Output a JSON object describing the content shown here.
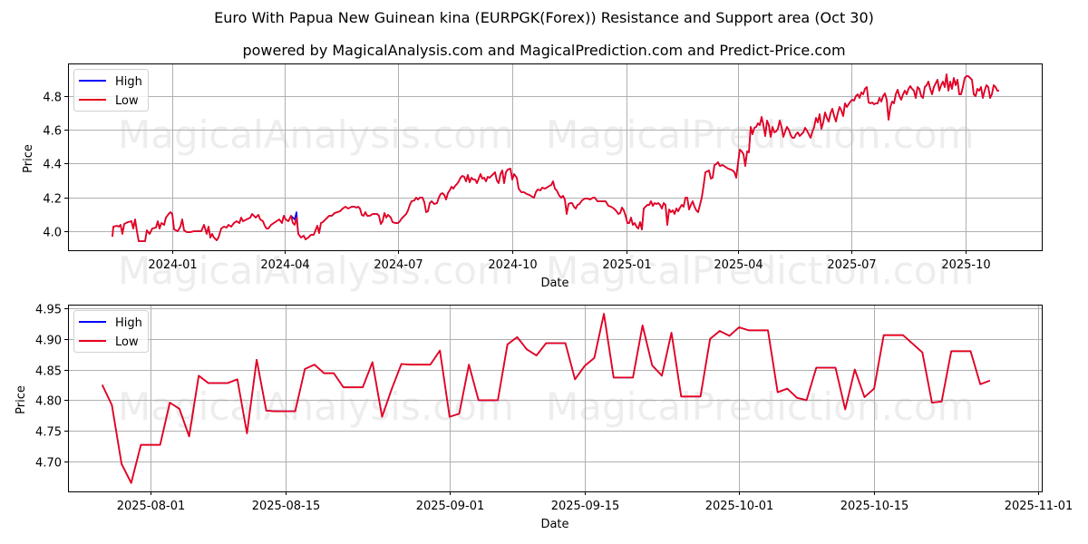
{
  "header": {
    "title": "Euro With Papua New Guinean kina (EURPGK(Forex)) Resistance and Support area (Oct 30)",
    "subtitle": "powered by MagicalAnalysis.com and MagicalPrediction.com and Predict-Price.com"
  },
  "watermarks": [
    "MagicalAnalysis.com",
    "MagicalPrediction.com"
  ],
  "colors": {
    "high": "#0000ff",
    "low": "#e8001c",
    "grid": "#b0b0b0"
  },
  "legend": {
    "high": "High",
    "low": "Low"
  },
  "chart_data": [
    {
      "type": "line",
      "title": "Long-term",
      "xlabel": "Date",
      "ylabel": "Price",
      "ylim": [
        3.89,
        4.99
      ],
      "yticks": [
        "4.0",
        "4.2",
        "4.4",
        "4.6",
        "4.8"
      ],
      "xticks": [
        "2024-01",
        "2024-04",
        "2024-07",
        "2024-10",
        "2025-01",
        "2025-04",
        "2025-07",
        "2025-10"
      ],
      "grid": true,
      "legend_position": "upper left",
      "x": [
        "2023-11",
        "2023-12",
        "2024-01",
        "2024-02",
        "2024-03",
        "2024-04",
        "2024-05",
        "2024-06",
        "2024-07",
        "2024-08",
        "2024-09",
        "2024-10",
        "2024-11",
        "2024-12",
        "2025-01",
        "2025-02",
        "2025-03",
        "2025-04",
        "2025-05",
        "2025-06",
        "2025-07",
        "2025-08",
        "2025-09",
        "2025-10",
        "2025-10-30"
      ],
      "series": [
        {
          "name": "High",
          "values": [
            3.98,
            4.03,
            4.01,
            4.0,
            4.06,
            4.09,
            3.97,
            4.12,
            4.06,
            4.18,
            4.3,
            4.36,
            4.25,
            4.18,
            4.1,
            4.12,
            4.14,
            4.4,
            4.6,
            4.62,
            4.8,
            4.78,
            4.85,
            4.91,
            4.83
          ]
        },
        {
          "name": "Low",
          "values": [
            3.97,
            4.02,
            4.0,
            3.99,
            4.05,
            4.07,
            3.96,
            4.11,
            4.05,
            4.17,
            4.29,
            4.35,
            4.24,
            4.17,
            4.09,
            4.11,
            4.13,
            4.39,
            4.59,
            4.61,
            4.79,
            4.77,
            4.84,
            4.9,
            4.83
          ]
        }
      ]
    },
    {
      "type": "line",
      "title": "Last 3 months",
      "xlabel": "Date",
      "ylabel": "Price",
      "ylim": [
        4.65,
        4.95
      ],
      "yticks": [
        "4.70",
        "4.75",
        "4.80",
        "4.85",
        "4.90",
        "4.95"
      ],
      "xticks": [
        "2025-08-01",
        "2025-08-15",
        "2025-09-01",
        "2025-09-15",
        "2025-10-01",
        "2025-10-15",
        "2025-11-01"
      ],
      "grid": true,
      "legend_position": "upper left",
      "x": [
        "2025-07-27",
        "2025-07-28",
        "2025-07-29",
        "2025-07-30",
        "2025-07-31",
        "2025-08-02",
        "2025-08-03",
        "2025-08-04",
        "2025-08-05",
        "2025-08-06",
        "2025-08-07",
        "2025-08-09",
        "2025-08-10",
        "2025-08-11",
        "2025-08-12",
        "2025-08-13",
        "2025-08-14",
        "2025-08-16",
        "2025-08-17",
        "2025-08-18",
        "2025-08-19",
        "2025-08-20",
        "2025-08-21",
        "2025-08-23",
        "2025-08-24",
        "2025-08-25",
        "2025-08-26",
        "2025-08-27",
        "2025-08-28",
        "2025-08-30",
        "2025-08-31",
        "2025-09-01",
        "2025-09-02",
        "2025-09-03",
        "2025-09-04",
        "2025-09-06",
        "2025-09-07",
        "2025-09-08",
        "2025-09-09",
        "2025-09-10",
        "2025-09-11",
        "2025-09-13",
        "2025-09-14",
        "2025-09-15",
        "2025-09-16",
        "2025-09-17",
        "2025-09-18",
        "2025-09-20",
        "2025-09-21",
        "2025-09-22",
        "2025-09-23",
        "2025-09-24",
        "2025-09-25",
        "2025-09-27",
        "2025-09-28",
        "2025-09-29",
        "2025-09-30",
        "2025-10-01",
        "2025-10-02",
        "2025-10-04",
        "2025-10-05",
        "2025-10-06",
        "2025-10-07",
        "2025-10-08",
        "2025-10-09",
        "2025-10-11",
        "2025-10-12",
        "2025-10-13",
        "2025-10-14",
        "2025-10-15",
        "2025-10-16",
        "2025-10-18",
        "2025-10-19",
        "2025-10-20",
        "2025-10-21",
        "2025-10-22",
        "2025-10-23",
        "2025-10-25",
        "2025-10-26",
        "2025-10-27"
      ],
      "series": [
        {
          "name": "High",
          "values": [
            4.825,
            4.792,
            4.696,
            4.665,
            4.727,
            4.727,
            4.796,
            4.786,
            4.741,
            4.84,
            4.828,
            4.828,
            4.834,
            4.746,
            4.866,
            4.783,
            4.782,
            4.782,
            4.851,
            4.858,
            4.844,
            4.844,
            4.821,
            4.821,
            4.862,
            4.773,
            4.818,
            4.859,
            4.858,
            4.858,
            4.881,
            4.773,
            4.778,
            4.858,
            4.8,
            4.8,
            4.891,
            4.903,
            4.883,
            4.873,
            4.893,
            4.893,
            4.834,
            4.856,
            4.869,
            4.941,
            4.837,
            4.837,
            4.922,
            4.857,
            4.84,
            4.91,
            4.806,
            4.806,
            4.9,
            4.913,
            4.905,
            4.919,
            4.914,
            4.914,
            4.813,
            4.819,
            4.804,
            4.8,
            4.853,
            4.853,
            4.785,
            4.85,
            4.805,
            4.819,
            4.906,
            4.906,
            4.892,
            4.878,
            4.796,
            4.798,
            4.88,
            4.88,
            4.826,
            4.832
          ]
        },
        {
          "name": "Low",
          "values": [
            4.825,
            4.792,
            4.696,
            4.665,
            4.727,
            4.727,
            4.796,
            4.786,
            4.741,
            4.84,
            4.828,
            4.828,
            4.834,
            4.746,
            4.866,
            4.783,
            4.782,
            4.782,
            4.851,
            4.858,
            4.844,
            4.844,
            4.821,
            4.821,
            4.862,
            4.773,
            4.818,
            4.859,
            4.858,
            4.858,
            4.881,
            4.773,
            4.778,
            4.858,
            4.8,
            4.8,
            4.891,
            4.903,
            4.883,
            4.873,
            4.893,
            4.893,
            4.834,
            4.856,
            4.869,
            4.941,
            4.837,
            4.837,
            4.922,
            4.857,
            4.84,
            4.91,
            4.806,
            4.806,
            4.9,
            4.913,
            4.905,
            4.919,
            4.914,
            4.914,
            4.813,
            4.819,
            4.804,
            4.8,
            4.853,
            4.853,
            4.785,
            4.85,
            4.805,
            4.819,
            4.906,
            4.906,
            4.892,
            4.878,
            4.796,
            4.798,
            4.88,
            4.88,
            4.826,
            4.832
          ]
        }
      ]
    }
  ]
}
